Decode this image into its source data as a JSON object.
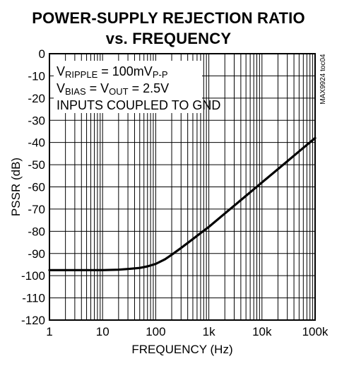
{
  "chart_data": {
    "type": "line",
    "title": "POWER-SUPPLY REJECTION RATIO",
    "subtitle": "vs. FREQUENCY",
    "xlabel": "FREQUENCY (Hz)",
    "ylabel": "PSSR (dB)",
    "xscale": "log",
    "xlim": [
      1,
      100000
    ],
    "ylim": [
      -120,
      0
    ],
    "grid": true,
    "x_tick_labels": [
      "1",
      "10",
      "100",
      "1k",
      "10k",
      "100k"
    ],
    "y_tick_labels": [
      "0",
      "-10",
      "-20",
      "-30",
      "-40",
      "-50",
      "-60",
      "-70",
      "-80",
      "-90",
      "-100",
      "-110",
      "-120"
    ],
    "conditions": {
      "line1": {
        "main": "V",
        "sub": "RIPPLE",
        "rest": " = 100mV",
        "sub2": "P-P"
      },
      "line2": {
        "main": "V",
        "sub": "BIAS",
        "mid": " = V",
        "sub2": "OUT",
        "rest": " = 2.5V"
      },
      "line3": "INPUTS COUPLED TO GND"
    },
    "figure_code": "MAX9924 toc04",
    "series": [
      {
        "x": [
          1,
          2,
          5,
          10,
          20,
          30,
          50,
          70,
          100,
          150,
          200,
          300,
          500,
          700,
          1000,
          2000,
          5000,
          10000,
          20000,
          50000,
          100000
        ],
        "y": [
          -97.5,
          -97.5,
          -97.5,
          -97.5,
          -97.3,
          -97,
          -96.5,
          -95.8,
          -94.7,
          -92.6,
          -90.6,
          -87.5,
          -83.5,
          -80.8,
          -78,
          -72,
          -64,
          -58,
          -52,
          -44,
          -38
        ]
      }
    ]
  }
}
